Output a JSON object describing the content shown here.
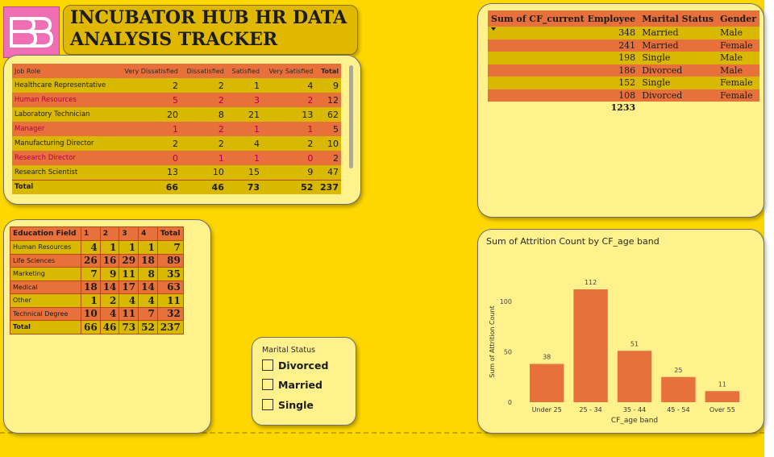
{
  "header": {
    "title_line1": "INCUBATOR HUB HR DATA",
    "title_line2": "ANALYSIS TRACKER",
    "logo_icon": "bb-logo-icon"
  },
  "colors": {
    "background": "#ffd700",
    "card": "#fff18c",
    "orange": "#e8703a",
    "gold": "#d9b800",
    "bar": "#e8703a"
  },
  "job_table": {
    "headers": [
      "Job Role",
      "Very Dissatisfied",
      "Dissatisfied",
      "Satisfied",
      "Very Satisfied",
      "Total"
    ],
    "rows": [
      {
        "role": "Healthcare Representative",
        "vd": "2",
        "d": "2",
        "s": "1",
        "vs": "4",
        "total": "9"
      },
      {
        "role": "Human Resources",
        "vd": "5",
        "d": "2",
        "s": "3",
        "vs": "2",
        "total": "12"
      },
      {
        "role": "Laboratory Technician",
        "vd": "20",
        "d": "8",
        "s": "21",
        "vs": "13",
        "total": "62"
      },
      {
        "role": "Manager",
        "vd": "1",
        "d": "2",
        "s": "1",
        "vs": "1",
        "total": "5"
      },
      {
        "role": "Manufacturing Director",
        "vd": "2",
        "d": "2",
        "s": "4",
        "vs": "2",
        "total": "10"
      },
      {
        "role": "Research Director",
        "vd": "0",
        "d": "1",
        "s": "1",
        "vs": "0",
        "total": "2"
      },
      {
        "role": "Research Scientist",
        "vd": "13",
        "d": "10",
        "s": "15",
        "vs": "9",
        "total": "47"
      }
    ],
    "total_row": {
      "role": "Total",
      "vd": "66",
      "d": "46",
      "s": "73",
      "vs": "52",
      "total": "237"
    }
  },
  "marital_table": {
    "headers": [
      "Sum of CF_current Employee",
      "Marital Status",
      "Gender"
    ],
    "rows": [
      {
        "sum": "348",
        "status": "Married",
        "gender": "Male"
      },
      {
        "sum": "241",
        "status": "Married",
        "gender": "Female"
      },
      {
        "sum": "198",
        "status": "Single",
        "gender": "Male"
      },
      {
        "sum": "186",
        "status": "Divorced",
        "gender": "Male"
      },
      {
        "sum": "152",
        "status": "Single",
        "gender": "Female"
      },
      {
        "sum": "108",
        "status": "Divorced",
        "gender": "Female"
      }
    ],
    "total": "1233"
  },
  "education_table": {
    "headers": [
      "Education Field",
      "1",
      "2",
      "3",
      "4",
      "Total"
    ],
    "rows": [
      {
        "field": "Human Resources",
        "c1": "4",
        "c2": "1",
        "c3": "1",
        "c4": "1",
        "total": "7"
      },
      {
        "field": "Life Sciences",
        "c1": "26",
        "c2": "16",
        "c3": "29",
        "c4": "18",
        "total": "89"
      },
      {
        "field": "Marketing",
        "c1": "7",
        "c2": "9",
        "c3": "11",
        "c4": "8",
        "total": "35"
      },
      {
        "field": "Medical",
        "c1": "18",
        "c2": "14",
        "c3": "17",
        "c4": "14",
        "total": "63"
      },
      {
        "field": "Other",
        "c1": "1",
        "c2": "2",
        "c3": "4",
        "c4": "4",
        "total": "11"
      },
      {
        "field": "Technical Degree",
        "c1": "10",
        "c2": "4",
        "c3": "11",
        "c4": "7",
        "total": "32"
      }
    ],
    "total_row": {
      "field": "Total",
      "c1": "66",
      "c2": "46",
      "c3": "73",
      "c4": "52",
      "total": "237"
    }
  },
  "slicer": {
    "title": "Marital Status",
    "options": [
      "Divorced",
      "Married",
      "Single"
    ]
  },
  "chart_data": {
    "type": "bar",
    "title": "Sum of Attrition Count by CF_age band",
    "xlabel": "CF_age band",
    "ylabel": "Sum of Attrition Count",
    "categories": [
      "Under 25",
      "25 - 34",
      "35 - 44",
      "45 - 54",
      "Over 55"
    ],
    "values": [
      38,
      112,
      51,
      25,
      11
    ],
    "yticks": [
      0,
      50,
      100
    ],
    "ylim": [
      0,
      120
    ],
    "grid": false,
    "data_labels": true
  }
}
